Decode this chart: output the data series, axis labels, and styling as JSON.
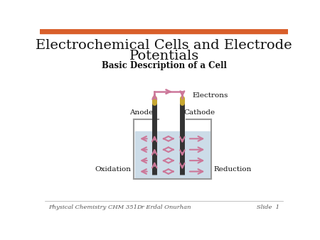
{
  "title_line1": "Electrochemical Cells and Electrode",
  "title_line2": "Potentials",
  "subtitle": "Basic Description of a Cell",
  "footer_left": "Physical Chemistry CHM 351",
  "footer_center": "Dr Erdal Onurhan",
  "footer_right": "Slide  1",
  "bg_color": "#ffffff",
  "title_color": "#111111",
  "subtitle_color": "#111111",
  "footer_color": "#555555",
  "top_bar_color": "#d95f2b",
  "arrow_color": "#cc7799",
  "beaker_fill": "#ccdce8",
  "beaker_edge": "#999999",
  "electrode_color": "#333333",
  "electrode_cap_color": "#c8a832",
  "label_color": "#111111",
  "wire_color": "#cc7799"
}
